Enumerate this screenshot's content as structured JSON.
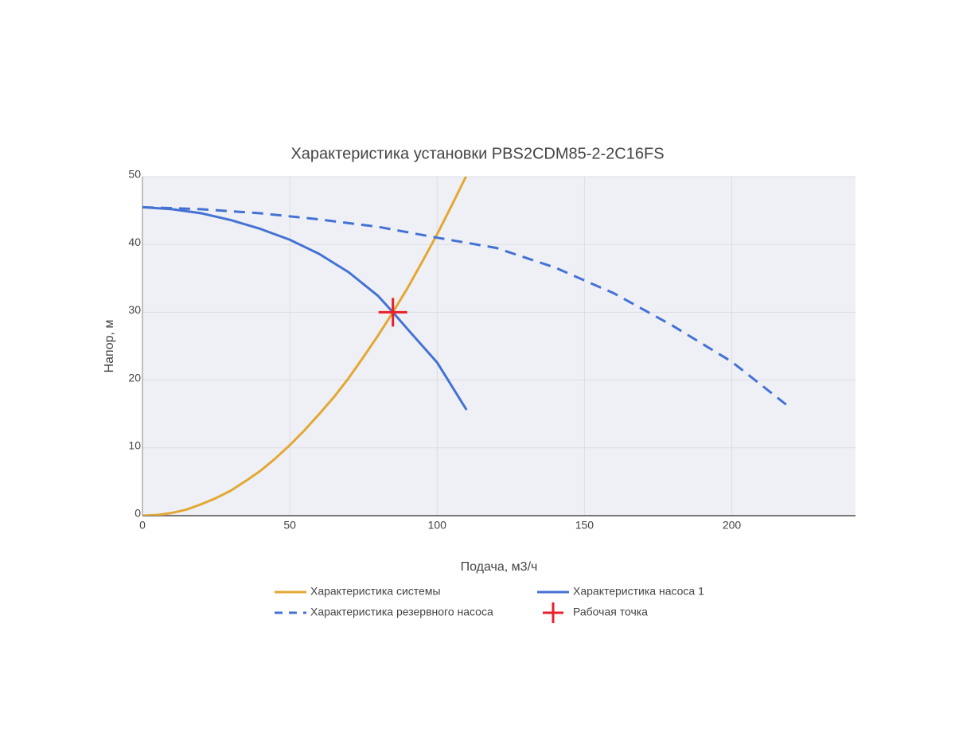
{
  "chart_data": {
    "type": "line",
    "title": "Характеристика установки PBS2CDM85-2-2C16FS",
    "x_label": "Подача, м3/ч",
    "y_label": "Напор, м",
    "xlim": [
      0,
      242
    ],
    "ylim": [
      0,
      50
    ],
    "xticks": [
      0,
      50,
      100,
      150,
      200
    ],
    "yticks": [
      0,
      10,
      20,
      30,
      40,
      50
    ],
    "grid": true,
    "legend": "bottom",
    "series": [
      {
        "name": "Характеристика системы",
        "color": "#e3a833",
        "dash": false,
        "mode": "line",
        "x": [
          0,
          5,
          10,
          15,
          20,
          25,
          30,
          35,
          40,
          45,
          50,
          55,
          60,
          65,
          70,
          75,
          80,
          85,
          90,
          95,
          100,
          105,
          110
        ],
        "values": [
          0,
          0.1,
          0.4,
          0.9,
          1.7,
          2.6,
          3.7,
          5.1,
          6.6,
          8.4,
          10.4,
          12.6,
          15.0,
          17.5,
          20.3,
          23.4,
          26.6,
          30.0,
          33.6,
          37.5,
          41.5,
          45.8,
          50.2
        ]
      },
      {
        "name": "Характеристика насоса 1",
        "color": "#4472d4",
        "dash": false,
        "mode": "line",
        "x": [
          0,
          10,
          20,
          30,
          40,
          50,
          60,
          70,
          80,
          85,
          90,
          100,
          110
        ],
        "values": [
          45.5,
          45.2,
          44.6,
          43.6,
          42.3,
          40.7,
          38.6,
          35.9,
          32.4,
          30.0,
          27.5,
          22.6,
          15.6
        ]
      },
      {
        "name": "Характеристика резервного насоса",
        "color": "#4472d4",
        "dash": true,
        "mode": "line",
        "x": [
          0,
          20,
          40,
          60,
          80,
          100,
          120,
          140,
          160,
          180,
          200,
          219
        ],
        "values": [
          45.5,
          45.2,
          44.6,
          43.7,
          42.6,
          41.0,
          39.5,
          36.6,
          32.8,
          28.0,
          22.7,
          16.2
        ]
      },
      {
        "name": "Рабочая точка",
        "color": "#e8202a",
        "dash": false,
        "mode": "marker",
        "x": [
          85
        ],
        "values": [
          30
        ]
      }
    ]
  }
}
